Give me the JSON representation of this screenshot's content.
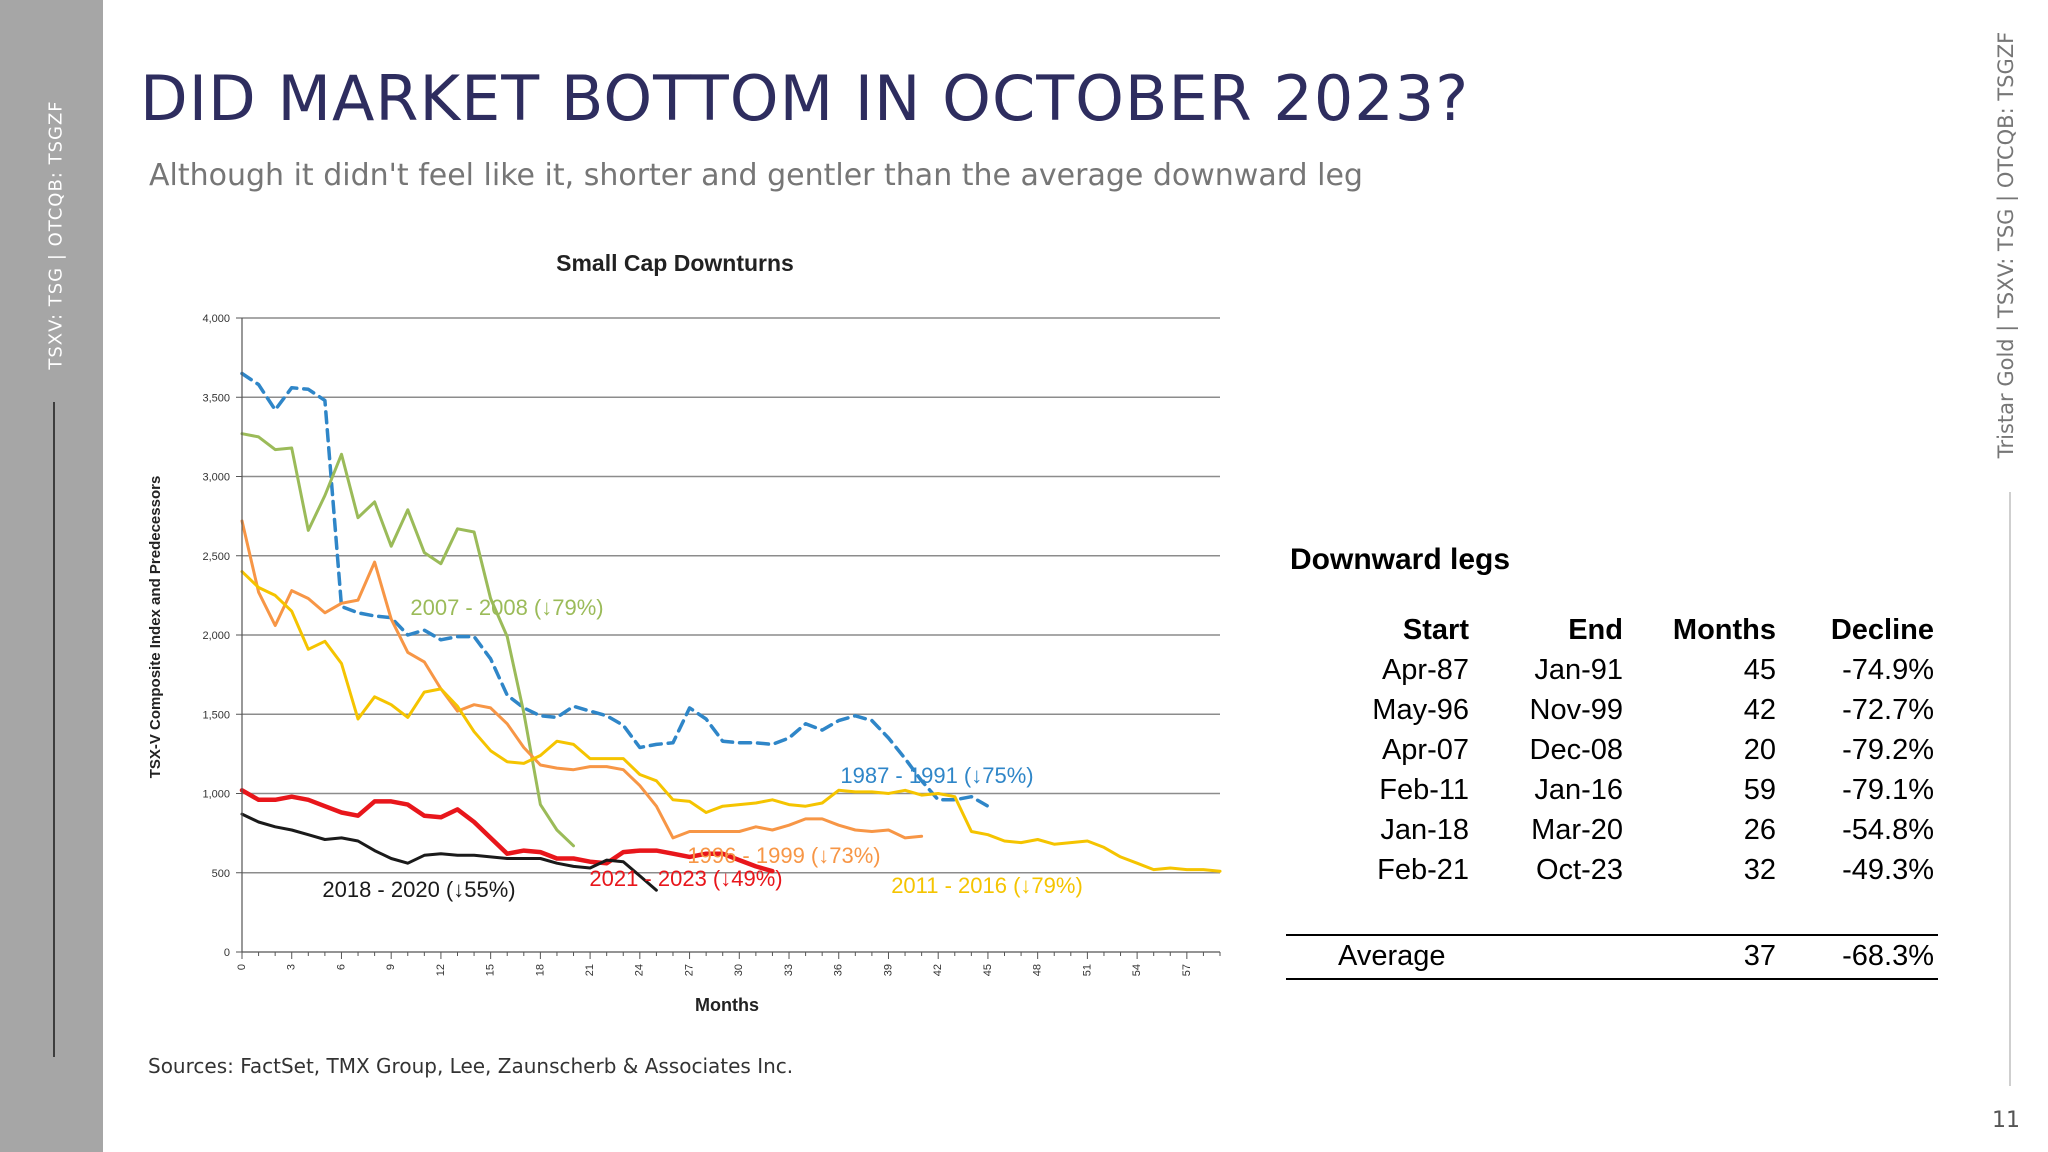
{
  "page": {
    "title": "DID MARKET BOTTOM IN OCTOBER 2023?",
    "subtitle": "Although it didn't feel like it, shorter and gentler than the average downward leg",
    "left_ticker": "TSXV: TSG | OTCQB: TSGZF",
    "right_ticker": "Tristar Gold | TSXV: TSG | OTCQB: TSGZF",
    "page_number": "11",
    "sources": "Sources: FactSet, TMX Group, Lee, Zaunscherb & Associates Inc."
  },
  "chart_data": {
    "type": "line",
    "title": "Small Cap Downturns",
    "xlabel": "Months",
    "ylabel": "TSX-V Composite Index and Predecessors",
    "xlim": [
      0,
      59
    ],
    "ylim": [
      0,
      4000
    ],
    "x_ticks": [
      0,
      3,
      6,
      9,
      12,
      15,
      18,
      21,
      24,
      27,
      30,
      33,
      36,
      39,
      42,
      45,
      48,
      51,
      54,
      57
    ],
    "x_tick_labels": [
      "0",
      "3",
      "6",
      "9",
      "12",
      "15",
      "18",
      "21",
      "24",
      "27",
      "30",
      "33",
      "36",
      "39",
      "42",
      "45",
      "48",
      "51",
      "54",
      "57"
    ],
    "y_ticks": [
      0,
      500,
      1000,
      1500,
      2000,
      2500,
      3000,
      3500,
      4000
    ],
    "y_tick_labels": [
      "0",
      "500",
      "1,000",
      "1,500",
      "2,000",
      "2,500",
      "3,000",
      "3,500",
      "4,000"
    ],
    "grid": "horizontal",
    "series": [
      {
        "name": "1987 - 1991 (↓75%)",
        "color": "#2f86c8",
        "dash": true,
        "values": [
          3650,
          3580,
          3420,
          3560,
          3550,
          3480,
          2180,
          2140,
          2120,
          2110,
          2000,
          2030,
          1970,
          1990,
          1990,
          1850,
          1620,
          1540,
          1490,
          1480,
          1550,
          1520,
          1490,
          1430,
          1290,
          1310,
          1320,
          1540,
          1470,
          1330,
          1320,
          1320,
          1310,
          1350,
          1440,
          1400,
          1460,
          1490,
          1460,
          1350,
          1220,
          1080,
          960,
          960,
          980,
          920
        ]
      },
      {
        "name": "2007 - 2008 (↓79%)",
        "color": "#9bbb59",
        "dash": false,
        "values": [
          3270,
          3250,
          3170,
          3180,
          2660,
          2880,
          3140,
          2740,
          2840,
          2560,
          2790,
          2520,
          2450,
          2670,
          2650,
          2230,
          1990,
          1510,
          930,
          770,
          670
        ]
      },
      {
        "name": "1996 - 1999 (↓73%)",
        "color": "#f79646",
        "dash": false,
        "values": [
          2720,
          2270,
          2060,
          2280,
          2230,
          2140,
          2200,
          2220,
          2460,
          2100,
          1890,
          1830,
          1660,
          1520,
          1560,
          1540,
          1440,
          1290,
          1180,
          1160,
          1150,
          1170,
          1170,
          1150,
          1050,
          920,
          720,
          760,
          760,
          760,
          760,
          790,
          770,
          800,
          840,
          840,
          800,
          770,
          760,
          770,
          720,
          730
        ]
      },
      {
        "name": "2011 - 2016 (↓79%)",
        "color": "#f5c400",
        "dash": false,
        "values": [
          2400,
          2300,
          2250,
          2150,
          1910,
          1960,
          1820,
          1470,
          1610,
          1560,
          1480,
          1640,
          1660,
          1550,
          1390,
          1270,
          1200,
          1190,
          1240,
          1330,
          1310,
          1220,
          1220,
          1220,
          1120,
          1080,
          960,
          950,
          880,
          920,
          930,
          940,
          960,
          930,
          920,
          940,
          1020,
          1010,
          1010,
          1000,
          1020,
          990,
          1000,
          980,
          760,
          740,
          700,
          690,
          710,
          680,
          690,
          700,
          660,
          600,
          560,
          520,
          530,
          520,
          520,
          510
        ]
      },
      {
        "name": "2021 - 2023 (↓49%)",
        "color": "#e8161b",
        "dash": false,
        "values": [
          1020,
          960,
          960,
          980,
          960,
          920,
          880,
          860,
          950,
          950,
          930,
          860,
          850,
          900,
          820,
          720,
          620,
          640,
          630,
          590,
          590,
          570,
          560,
          630,
          640,
          640,
          620,
          600,
          620,
          620,
          580,
          540,
          510
        ]
      },
      {
        "name": "2018 - 2020 (↓55%)",
        "color": "#1a1a1a",
        "dash": false,
        "values": [
          870,
          820,
          790,
          770,
          740,
          710,
          720,
          700,
          640,
          590,
          560,
          610,
          620,
          610,
          610,
          600,
          590,
          590,
          590,
          560,
          540,
          530,
          580,
          570,
          480,
          390
        ]
      }
    ]
  },
  "downward_legs": {
    "title": "Downward legs",
    "headers": [
      "Start",
      "End",
      "Months",
      "Decline"
    ],
    "rows": [
      [
        "Apr-87",
        "Jan-91",
        "45",
        "-74.9%"
      ],
      [
        "May-96",
        "Nov-99",
        "42",
        "-72.7%"
      ],
      [
        "Apr-07",
        "Dec-08",
        "20",
        "-79.2%"
      ],
      [
        "Feb-11",
        "Jan-16",
        "59",
        "-79.1%"
      ],
      [
        "Jan-18",
        "Mar-20",
        "26",
        "-54.8%"
      ],
      [
        "Feb-21",
        "Oct-23",
        "32",
        "-49.3%"
      ]
    ],
    "average": {
      "label": "Average",
      "months": "37",
      "decline": "-68.3%"
    }
  }
}
